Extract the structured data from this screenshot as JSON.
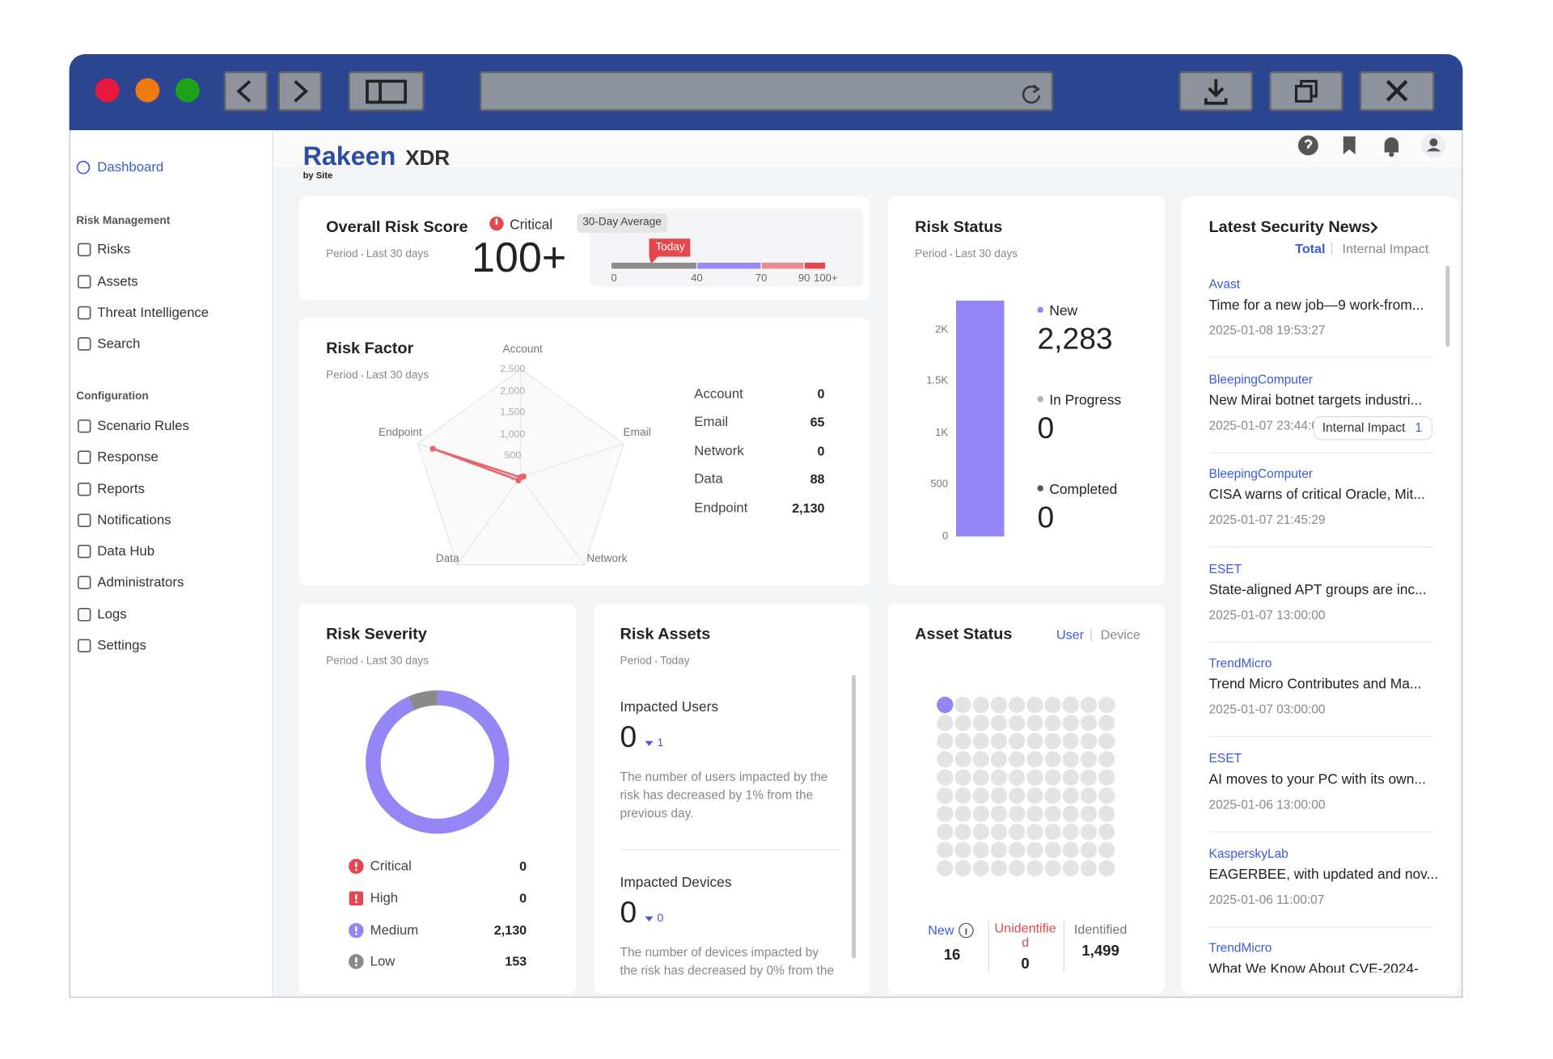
{
  "sidebar": {
    "active": "Dashboard",
    "sections": [
      {
        "title": "Risk Management",
        "items": [
          "Risks",
          "Assets",
          "Threat Intelligence",
          "Search"
        ]
      },
      {
        "title": "Configuration",
        "items": [
          "Scenario Rules",
          "Response",
          "Reports",
          "Notifications",
          "Data Hub",
          "Administrators",
          "Logs",
          "Settings"
        ]
      }
    ]
  },
  "header": {
    "brand": "Rakeen",
    "product": "XDR",
    "byline": "by Site"
  },
  "overall_risk": {
    "title": "Overall Risk Score",
    "period_label": "Period",
    "period": "Last 30 days",
    "level": "Critical",
    "score": "100+",
    "average_label": "30-Day Average",
    "marker": "Today",
    "ticks": [
      0,
      40,
      70,
      90,
      {
        "value": 100,
        "label": "100+"
      }
    ],
    "segment_colors": [
      "#8c8c8c",
      "#9b8cf4",
      "#ec8a8f",
      "#e5474f"
    ]
  },
  "chart_data": [
    {
      "type": "radar",
      "title": "Risk Factor",
      "period_label": "Period",
      "period": "Last 30 days",
      "categories": [
        "Account",
        "Email",
        "Network",
        "Data",
        "Endpoint"
      ],
      "values": [
        0,
        65,
        0,
        88,
        2130
      ],
      "value_labels": [
        "0",
        "65",
        "0",
        "88",
        "2,130"
      ],
      "color": "#e5656b",
      "rlim": [
        0,
        2500
      ],
      "rticks": [
        0,
        500,
        {
          "value": 1000,
          "label": "1,000"
        },
        {
          "value": 1500,
          "label": "1,500"
        },
        {
          "value": 2000,
          "label": "2,000"
        },
        {
          "value": 2500,
          "label": "2,500"
        }
      ]
    },
    {
      "type": "bar",
      "title": "Risk Status",
      "period_label": "Period",
      "period": "Last 30 days",
      "stacked": true,
      "categories": [
        null
      ],
      "series": [
        {
          "name": "New",
          "color": "#9487f5",
          "values": [
            2283
          ],
          "value_labels": [
            "2,283"
          ]
        },
        {
          "name": "In Progress",
          "color": "#b0b0b0",
          "values": [
            0
          ]
        },
        {
          "name": "Completed",
          "color": "#555555",
          "values": [
            0
          ]
        }
      ],
      "ylim": [
        0,
        2300
      ],
      "yticks": [
        0,
        500,
        {
          "value": 1000,
          "label": "1K"
        },
        {
          "value": 1500,
          "label": "1.5K"
        },
        {
          "value": 2000,
          "label": "2K"
        }
      ]
    },
    {
      "type": "donut",
      "title": "Risk Severity",
      "period_label": "Period",
      "period": "Last 30 days",
      "categories": [
        "Critical",
        "High",
        "Medium",
        "Low"
      ],
      "values": [
        0,
        0,
        2130,
        153
      ],
      "value_labels": [
        "0",
        "0",
        "2,130",
        "153"
      ],
      "colors": [
        "#e5474f",
        "#e5474f",
        "#9487f5",
        "#8a8a8a"
      ]
    },
    {
      "type": "waffle",
      "title": "Asset Status",
      "tabs": [
        "User",
        "Device"
      ],
      "active_tab": "User",
      "categories": [
        "New",
        "Unidentified",
        "Identified"
      ],
      "values": [
        16,
        0,
        1499
      ],
      "value_labels": [
        "16",
        "0",
        "1,499"
      ],
      "colors": [
        "#9487f5",
        "#e5474f",
        "#e4e4e4"
      ],
      "label_colors": [
        "#3b5bdb",
        "#e5474f",
        "#777777"
      ]
    }
  ],
  "risk_assets": {
    "title": "Risk Assets",
    "period_label": "Period",
    "period": "Today",
    "sections": [
      {
        "title": "Impacted Users",
        "value": "0",
        "change": "1",
        "description": "The number of users impacted by the risk has decreased by 1% from the previous day."
      },
      {
        "title": "Impacted Devices",
        "value": "0",
        "change": "0",
        "description": "The number of devices impacted by the risk has decreased by 0% from the"
      }
    ]
  },
  "news": {
    "title": "Latest Security News",
    "tabs": [
      "Total",
      "Internal Impact"
    ],
    "items": [
      {
        "source": "Avast",
        "title": "Time for a new job—9 work-from...",
        "date": "2025-01-08 19:53:27"
      },
      {
        "source": "BleepingComputer",
        "title": "New Mirai botnet targets industri...",
        "date": "2025-01-07 23:44:0"
      },
      {
        "source": "BleepingComputer",
        "title": "CISA warns of critical Oracle, Mit...",
        "date": "2025-01-07 21:45:29"
      },
      {
        "source": "ESET",
        "title": "State-aligned APT groups are inc...",
        "date": "2025-01-07 13:00:00"
      },
      {
        "source": "TrendMicro",
        "title": "Trend Micro Contributes and Ma...",
        "date": "2025-01-07 03:00:00"
      },
      {
        "source": "ESET",
        "title": "AI moves to your PC with its own...",
        "date": "2025-01-06 13:00:00"
      },
      {
        "source": "KasperskyLab",
        "title": "EAGERBEE, with updated and nov...",
        "date": "2025-01-06 11:00:07"
      },
      {
        "source": "TrendMicro",
        "title": "What We Know About CVE-2024-"
      }
    ],
    "tooltip": {
      "label": "Internal Impact",
      "count": "1"
    }
  }
}
